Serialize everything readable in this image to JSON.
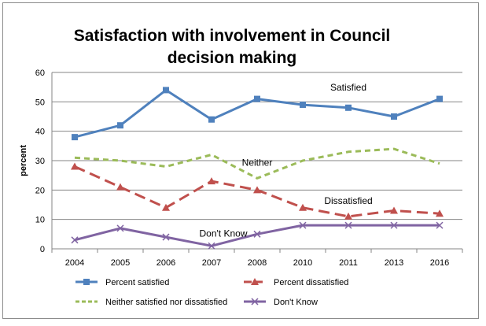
{
  "chart_data": {
    "type": "line",
    "title_lines": [
      "Satisfaction with involvement in Council",
      "decision making"
    ],
    "xlabel": "",
    "ylabel": "percent",
    "ylim": [
      0,
      60
    ],
    "yticks": [
      0,
      10,
      20,
      30,
      40,
      50,
      60
    ],
    "grid": true,
    "legend_position": "bottom",
    "categories": [
      "2004",
      "2005",
      "2006",
      "2007",
      "2008",
      "2010",
      "2011",
      "2013",
      "2016"
    ],
    "series": [
      {
        "key": "satisfied",
        "name": "Percent satisfied",
        "color": "#4f81bd",
        "dash": "",
        "marker": "square",
        "values": [
          38,
          42,
          54,
          44,
          51,
          49,
          48,
          45,
          51
        ]
      },
      {
        "key": "dissatisfied",
        "name": "Percent dissatisfied",
        "color": "#c0504d",
        "dash": "14,7",
        "marker": "triangle",
        "values": [
          28,
          21,
          14,
          23,
          20,
          14,
          11,
          13,
          12
        ]
      },
      {
        "key": "neither",
        "name": "Neither satisfied nor dissatisfied",
        "color": "#9bbb59",
        "dash": "7,5",
        "marker": "none",
        "values": [
          31,
          30,
          28,
          32,
          24,
          30,
          33,
          34,
          29
        ]
      },
      {
        "key": "dontknow",
        "name": "Don't Know",
        "color": "#8064a2",
        "dash": "",
        "marker": "x",
        "values": [
          3,
          7,
          4,
          1,
          5,
          8,
          8,
          8,
          8
        ]
      }
    ],
    "annotations": [
      {
        "text": "Satisfied",
        "series": "satisfied",
        "at": "2011"
      },
      {
        "text": "Neither",
        "series": "neither",
        "at": "2008"
      },
      {
        "text": "Dissatisfied",
        "series": "dissatisfied",
        "at": "2011"
      },
      {
        "text": "Don't Know",
        "series": "dontknow",
        "at": "2007"
      }
    ]
  }
}
